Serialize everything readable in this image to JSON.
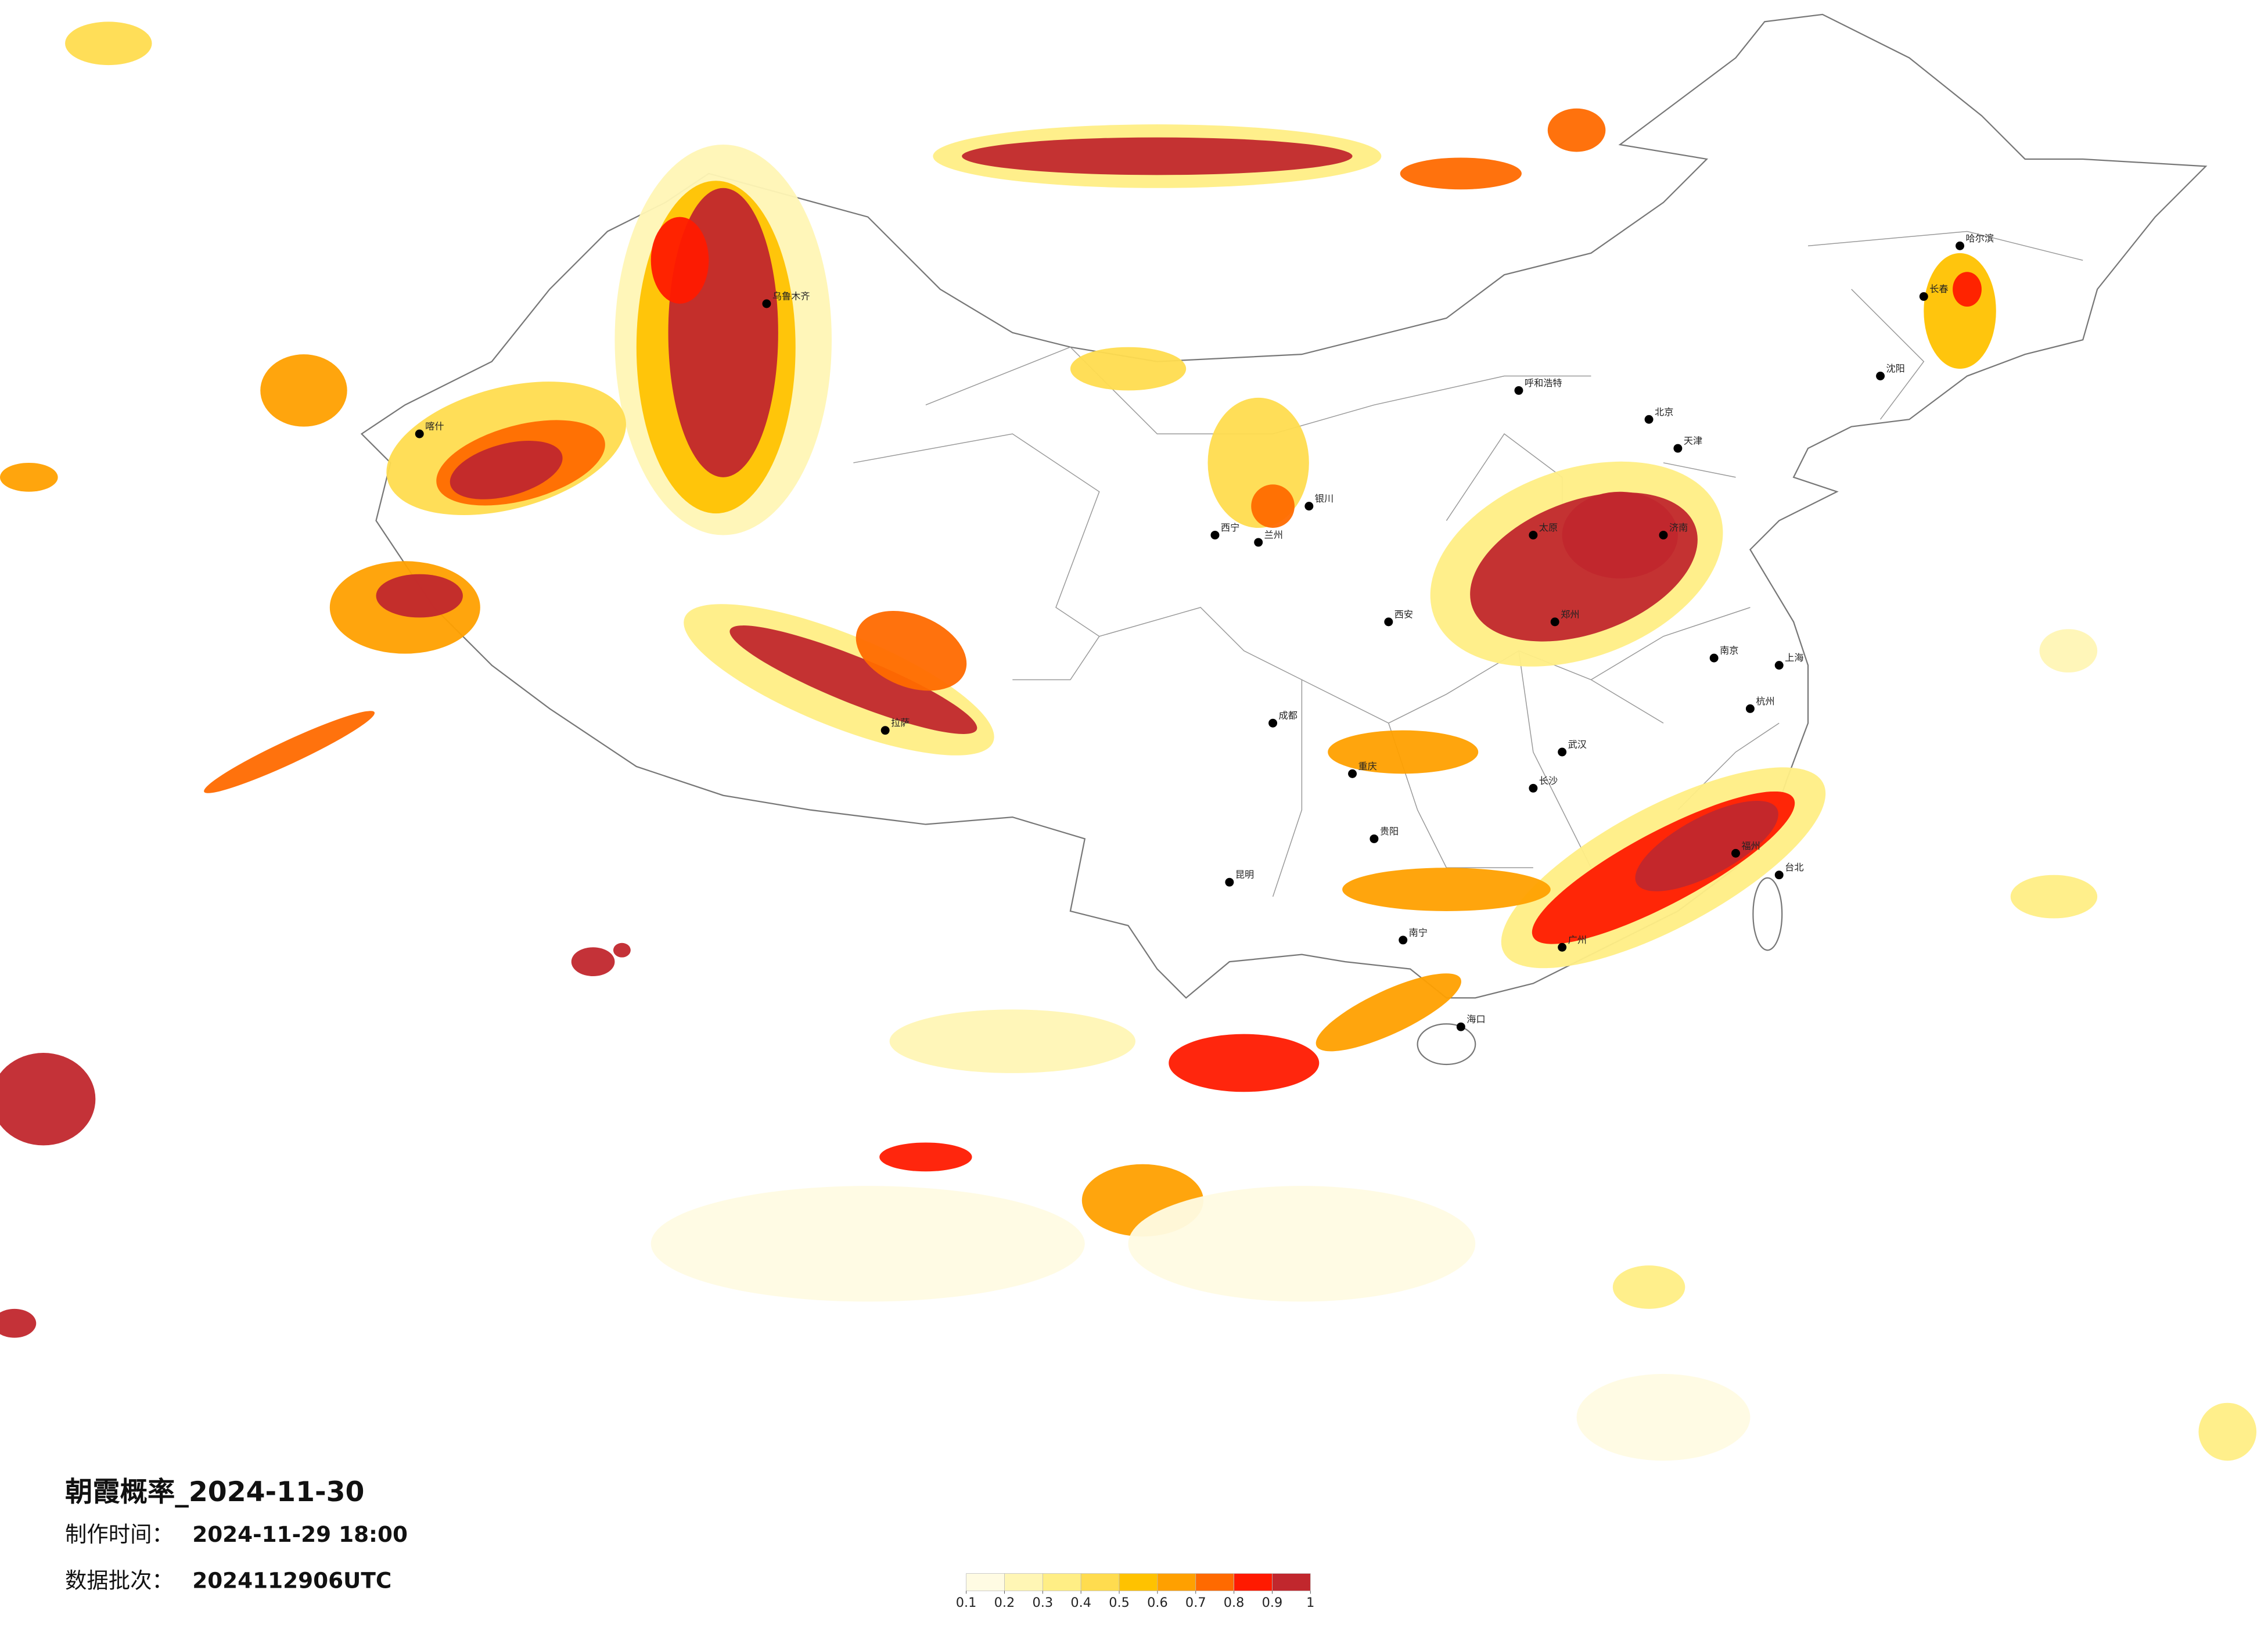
{
  "title": "朝霞概率_2024-11-30",
  "production_time": {
    "label": "制作时间：",
    "value": "2024-11-29 18:00"
  },
  "data_batch": {
    "label": "数据批次：",
    "value": "2024112906UTC"
  },
  "legend": {
    "ticks": [
      0.1,
      0.2,
      0.3,
      0.4,
      0.5,
      0.6,
      0.7,
      0.8,
      0.9,
      1
    ],
    "colors": [
      "#fffbe3",
      "#fff6b5",
      "#ffee85",
      "#ffdc4f",
      "#ffc200",
      "#ffa000",
      "#ff6a00",
      "#ff1a00",
      "#c1272d"
    ]
  },
  "cities": [
    "北京",
    "天津",
    "上海",
    "广州",
    "成都",
    "重庆",
    "西安",
    "兰州",
    "拉萨",
    "乌鲁木齐",
    "哈尔滨",
    "长春",
    "沈阳",
    "呼和浩特",
    "昆明",
    "南宁",
    "海口",
    "台北",
    "郑州",
    "长沙",
    "南京",
    "杭州",
    "福州",
    "贵阳",
    "银川",
    "西宁",
    "喀什",
    "济南",
    "太原",
    "武汉"
  ]
}
